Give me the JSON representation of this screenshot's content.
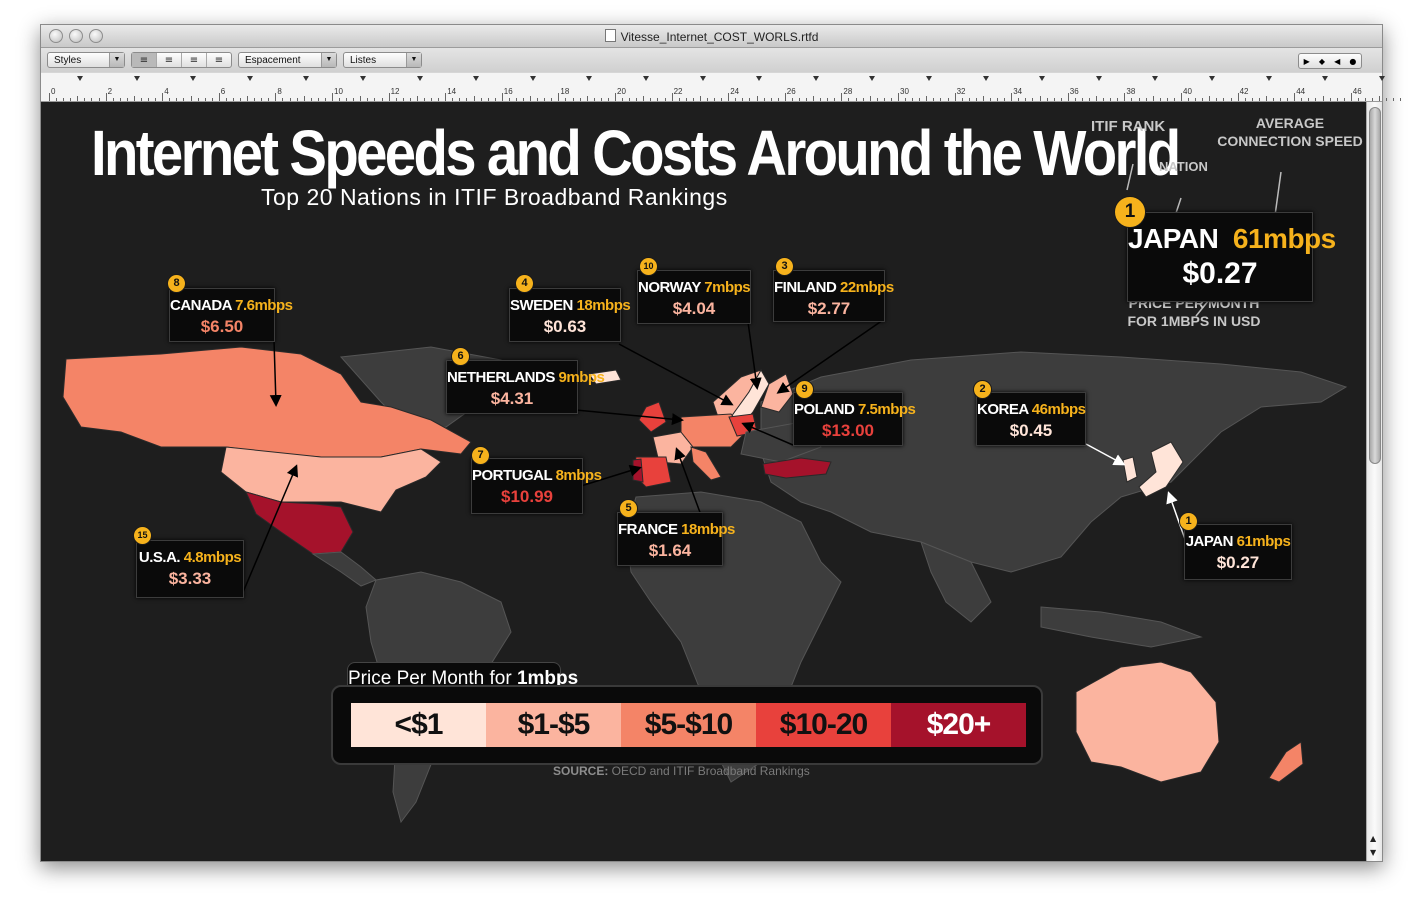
{
  "window": {
    "title": "Vitesse_Internet_COST_WORLS.rtfd"
  },
  "toolbar": {
    "styles_label": "Styles",
    "spacing_label": "Espacement",
    "lists_label": "Listes",
    "align_icons": [
      "align-left-icon",
      "align-center-icon",
      "align-justify-icon",
      "align-right-icon"
    ]
  },
  "ruler": {
    "numbers": [
      "0",
      "2",
      "4",
      "6",
      "8",
      "10",
      "12",
      "14",
      "16",
      "18",
      "20",
      "22",
      "24",
      "26",
      "28",
      "30",
      "32",
      "34",
      "36",
      "38",
      "40",
      "42",
      "44",
      "46"
    ]
  },
  "infographic": {
    "title": "Internet Speeds and Costs Around the World",
    "subtitle": "Top 20 Nations in ITIF Broadband Rankings",
    "key": {
      "rank_label": "ITIF RANK",
      "nation_label": "NATION",
      "speed_label_1": "AVERAGE",
      "speed_label_2": "CONNECTION SPEED",
      "price_label_1": "PRICE PER MONTH",
      "price_label_2": "FOR 1MBPS IN USD",
      "example": {
        "rank": "1",
        "nation": "JAPAN",
        "speed": "61mbps",
        "price": "$0.27"
      }
    },
    "countries": [
      {
        "rank": "8",
        "nation": "CANADA",
        "speed": "7.6mbps",
        "price": "$6.50",
        "price_color": "#f48467"
      },
      {
        "rank": "4",
        "nation": "SWEDEN",
        "speed": "18mbps",
        "price": "$0.63",
        "price_color": "#ffe4d8"
      },
      {
        "rank": "10",
        "nation": "NORWAY",
        "speed": "7mbps",
        "price": "$4.04",
        "price_color": "#fbb49f"
      },
      {
        "rank": "3",
        "nation": "FINLAND",
        "speed": "22mbps",
        "price": "$2.77",
        "price_color": "#fbb49f"
      },
      {
        "rank": "6",
        "nation": "NETHERLANDS",
        "speed": "9mbps",
        "price": "$4.31",
        "price_color": "#fbb49f"
      },
      {
        "rank": "9",
        "nation": "POLAND",
        "speed": "7.5mbps",
        "price": "$13.00",
        "price_color": "#e8413c"
      },
      {
        "rank": "2",
        "nation": "KOREA",
        "speed": "46mbps",
        "price": "$0.45",
        "price_color": "#ffe4d8"
      },
      {
        "rank": "7",
        "nation": "PORTUGAL",
        "speed": "8mbps",
        "price": "$10.99",
        "price_color": "#e8413c"
      },
      {
        "rank": "5",
        "nation": "FRANCE",
        "speed": "18mbps",
        "price": "$1.64",
        "price_color": "#fbb49f"
      },
      {
        "rank": "1",
        "nation": "JAPAN",
        "speed": "61mbps",
        "price": "$0.27",
        "price_color": "#ffe4d8"
      },
      {
        "rank": "15",
        "nation": "U.S.A.",
        "speed": "4.8mbps",
        "price": "$3.33",
        "price_color": "#fbb49f"
      }
    ],
    "legend": {
      "title_prefix": "Price Per Month for ",
      "title_bold": "1mbps",
      "bins": [
        {
          "label": "<$1",
          "color": "#ffe4d8",
          "text_color": "#111111"
        },
        {
          "label": "$1-$5",
          "color": "#fbb49f",
          "text_color": "#111111"
        },
        {
          "label": "$5-$10",
          "color": "#f48467",
          "text_color": "#111111"
        },
        {
          "label": "$10-20",
          "color": "#e8413c",
          "text_color": "#111111"
        },
        {
          "label": "$20+",
          "color": "#a5122b",
          "text_color": "#ffffff"
        }
      ]
    },
    "source": {
      "label": "SOURCE:",
      "text": " OECD and ITIF Broadband Rankings"
    }
  }
}
